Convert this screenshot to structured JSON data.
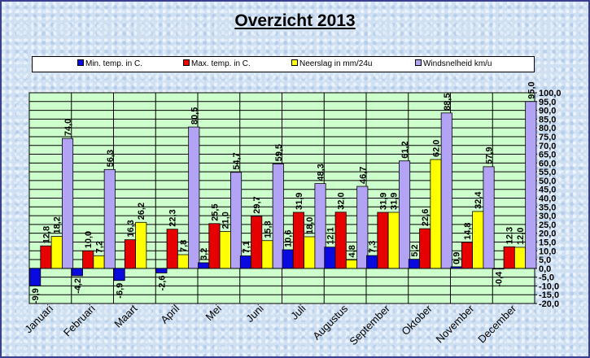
{
  "chart_data": {
    "type": "bar",
    "title": "Overzicht 2013",
    "categories": [
      "Januari",
      "Februari",
      "Maart",
      "April",
      "Mei",
      "Juni",
      "Juli",
      "Augustus",
      "September",
      "Oktober",
      "November",
      "December"
    ],
    "series": [
      {
        "name": "Min. temp. in C.",
        "color": "#0a0ae0",
        "values": [
          -9.9,
          -4.2,
          -6.9,
          -2.6,
          3.2,
          7.1,
          10.6,
          12.1,
          7.3,
          5.2,
          0.9,
          -0.4
        ],
        "labels": [
          "-9,9",
          "-4,2",
          "-6,9",
          "-2,6",
          "3,2",
          "7,1",
          "10,6",
          "12,1",
          "7,3",
          "5,2",
          "0,9",
          "-0,4"
        ]
      },
      {
        "name": "Max. temp. in C.",
        "color": "#e60000",
        "values": [
          12.8,
          10.0,
          16.3,
          22.3,
          25.5,
          29.7,
          31.9,
          32.0,
          31.9,
          22.6,
          14.8,
          12.3
        ],
        "labels": [
          "12,8",
          "10,0",
          "16,3",
          "22,3",
          "25,5",
          "29,7",
          "31,9",
          "32,0",
          "31,9",
          "22,6",
          "14,8",
          "12,3"
        ]
      },
      {
        "name": "Neerslag in mm/24u",
        "color": "#ffff00",
        "values": [
          18.2,
          7.2,
          26.2,
          7.8,
          21.0,
          15.8,
          18.0,
          4.8,
          31.9,
          62.0,
          32.4,
          12.0
        ],
        "labels": [
          "18,2",
          "7,2",
          "26,2",
          "7,8",
          "21,0",
          "15,8",
          "18,0",
          "4,8",
          "31,9",
          "62,0",
          "32,4",
          "12,0"
        ]
      },
      {
        "name": "Windsnelheid km/u",
        "color": "#b3a3f5",
        "values": [
          74.0,
          56.3,
          null,
          80.5,
          54.7,
          59.5,
          48.3,
          46.7,
          61.2,
          88.5,
          57.9,
          95.0
        ],
        "labels": [
          "74,0",
          "56,3",
          "",
          "80,5",
          "54,7",
          "59,5",
          "48,3",
          "46,7",
          "61,2",
          "88,5",
          "57,9",
          "95,0"
        ]
      }
    ],
    "ylim": [
      -20,
      100
    ],
    "yticks": [
      -20,
      -15,
      -10,
      -5,
      0,
      5,
      10,
      15,
      20,
      25,
      30,
      35,
      40,
      45,
      50,
      55,
      60,
      65,
      70,
      75,
      80,
      85,
      90,
      95,
      100
    ],
    "ytick_labels": [
      "-20,0",
      "-15,0",
      "-10,0",
      "-5,0",
      "0,0",
      "5,0",
      "10,0",
      "15,0",
      "20,0",
      "25,0",
      "30,0",
      "35,0",
      "40,0",
      "45,0",
      "50,0",
      "55,0",
      "60,0",
      "65,0",
      "70,0",
      "75,0",
      "80,0",
      "85,0",
      "90,0",
      "95,0",
      "100,0"
    ],
    "grid": true,
    "legend": "top",
    "plot_background": "#ccffcc",
    "xlabel": "",
    "ylabel": ""
  }
}
